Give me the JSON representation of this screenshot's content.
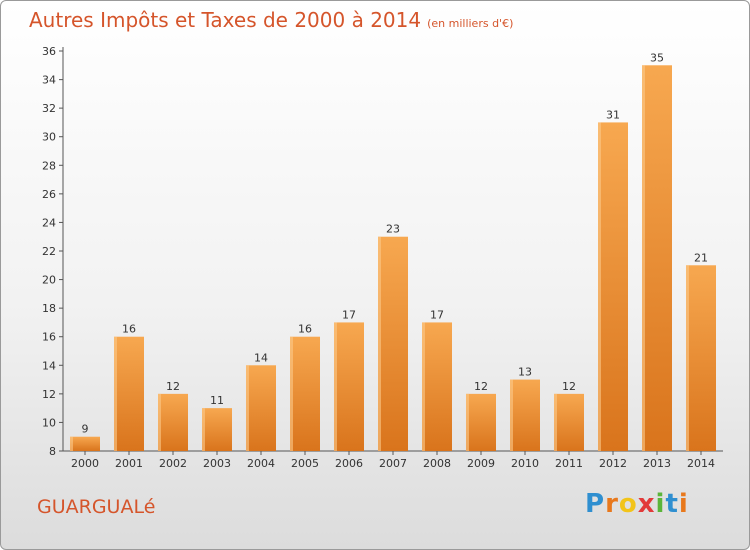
{
  "header": {
    "title": "Autres Impôts et Taxes de 2000 à 2014",
    "subtitle": "(en milliers d'€)"
  },
  "footer": {
    "town": "GUARGUALé",
    "brand_letters": [
      "P",
      "r",
      "o",
      "x",
      "i",
      "t",
      "i"
    ]
  },
  "colors": {
    "title": "#d5552b",
    "bar_top": "#f7a850",
    "bar_bottom": "#d9741c",
    "brand": [
      "#2f8fd0",
      "#e8781c",
      "#f2c419",
      "#e23a3a",
      "#5bb53a",
      "#2f8fd0",
      "#e8781c"
    ]
  },
  "chart_data": {
    "type": "bar",
    "categories": [
      "2000",
      "2001",
      "2002",
      "2003",
      "2004",
      "2005",
      "2006",
      "2007",
      "2008",
      "2009",
      "2010",
      "2011",
      "2012",
      "2013",
      "2014"
    ],
    "values": [
      9,
      16,
      12,
      11,
      14,
      16,
      17,
      23,
      17,
      12,
      13,
      12,
      31,
      35,
      21
    ],
    "ylim": [
      8,
      36
    ],
    "yticks": [
      8,
      10,
      12,
      14,
      16,
      18,
      20,
      22,
      24,
      26,
      28,
      30,
      32,
      34,
      36
    ],
    "xlabel": "",
    "ylabel": "",
    "grid": false
  }
}
